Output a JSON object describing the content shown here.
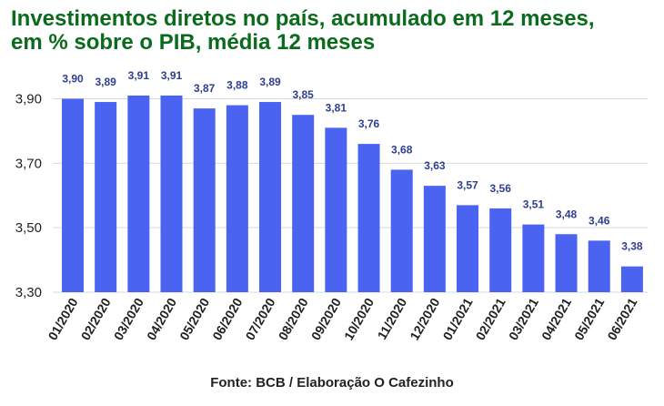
{
  "title_lines": [
    "Investimentos diretos no país, acumulado em 12 meses,",
    "em % sobre o PIB, média 12 meses"
  ],
  "source": "Fonte: BCB / Elaboração O Cafezinho",
  "colors": {
    "title": "#0b6b1d",
    "bar": "#4a63f0",
    "data_label": "#2e3f8f",
    "grid": "#d9d9d9",
    "axis_text": "#222222"
  },
  "chart_data": {
    "type": "bar",
    "title": "Investimentos diretos no país, acumulado em 12 meses, em % sobre o PIB, média 12 meses",
    "xlabel": "",
    "ylabel": "",
    "categories": [
      "01/2020",
      "02/2020",
      "03/2020",
      "04/2020",
      "05/2020",
      "06/2020",
      "07/2020",
      "08/2020",
      "09/2020",
      "10/2020",
      "11/2020",
      "12/2020",
      "01/2021",
      "02/2021",
      "03/2021",
      "04/2021",
      "05/2021",
      "06/2021"
    ],
    "values": [
      3.9,
      3.89,
      3.91,
      3.91,
      3.87,
      3.88,
      3.89,
      3.85,
      3.81,
      3.76,
      3.68,
      3.63,
      3.57,
      3.56,
      3.51,
      3.48,
      3.46,
      3.38
    ],
    "labels": [
      "3,90",
      "3,89",
      "3,91",
      "3,91",
      "3,87",
      "3,88",
      "3,89",
      "3,85",
      "3,81",
      "3,76",
      "3,68",
      "3,63",
      "3,57",
      "3,56",
      "3,51",
      "3,48",
      "3,46",
      "3,38"
    ],
    "yticks": [
      3.3,
      3.5,
      3.7,
      3.9
    ],
    "ytick_labels": [
      "3,30",
      "3,50",
      "3,70",
      "3,90"
    ],
    "ylim": [
      3.3,
      3.96
    ],
    "grid": true,
    "legend": "none"
  }
}
